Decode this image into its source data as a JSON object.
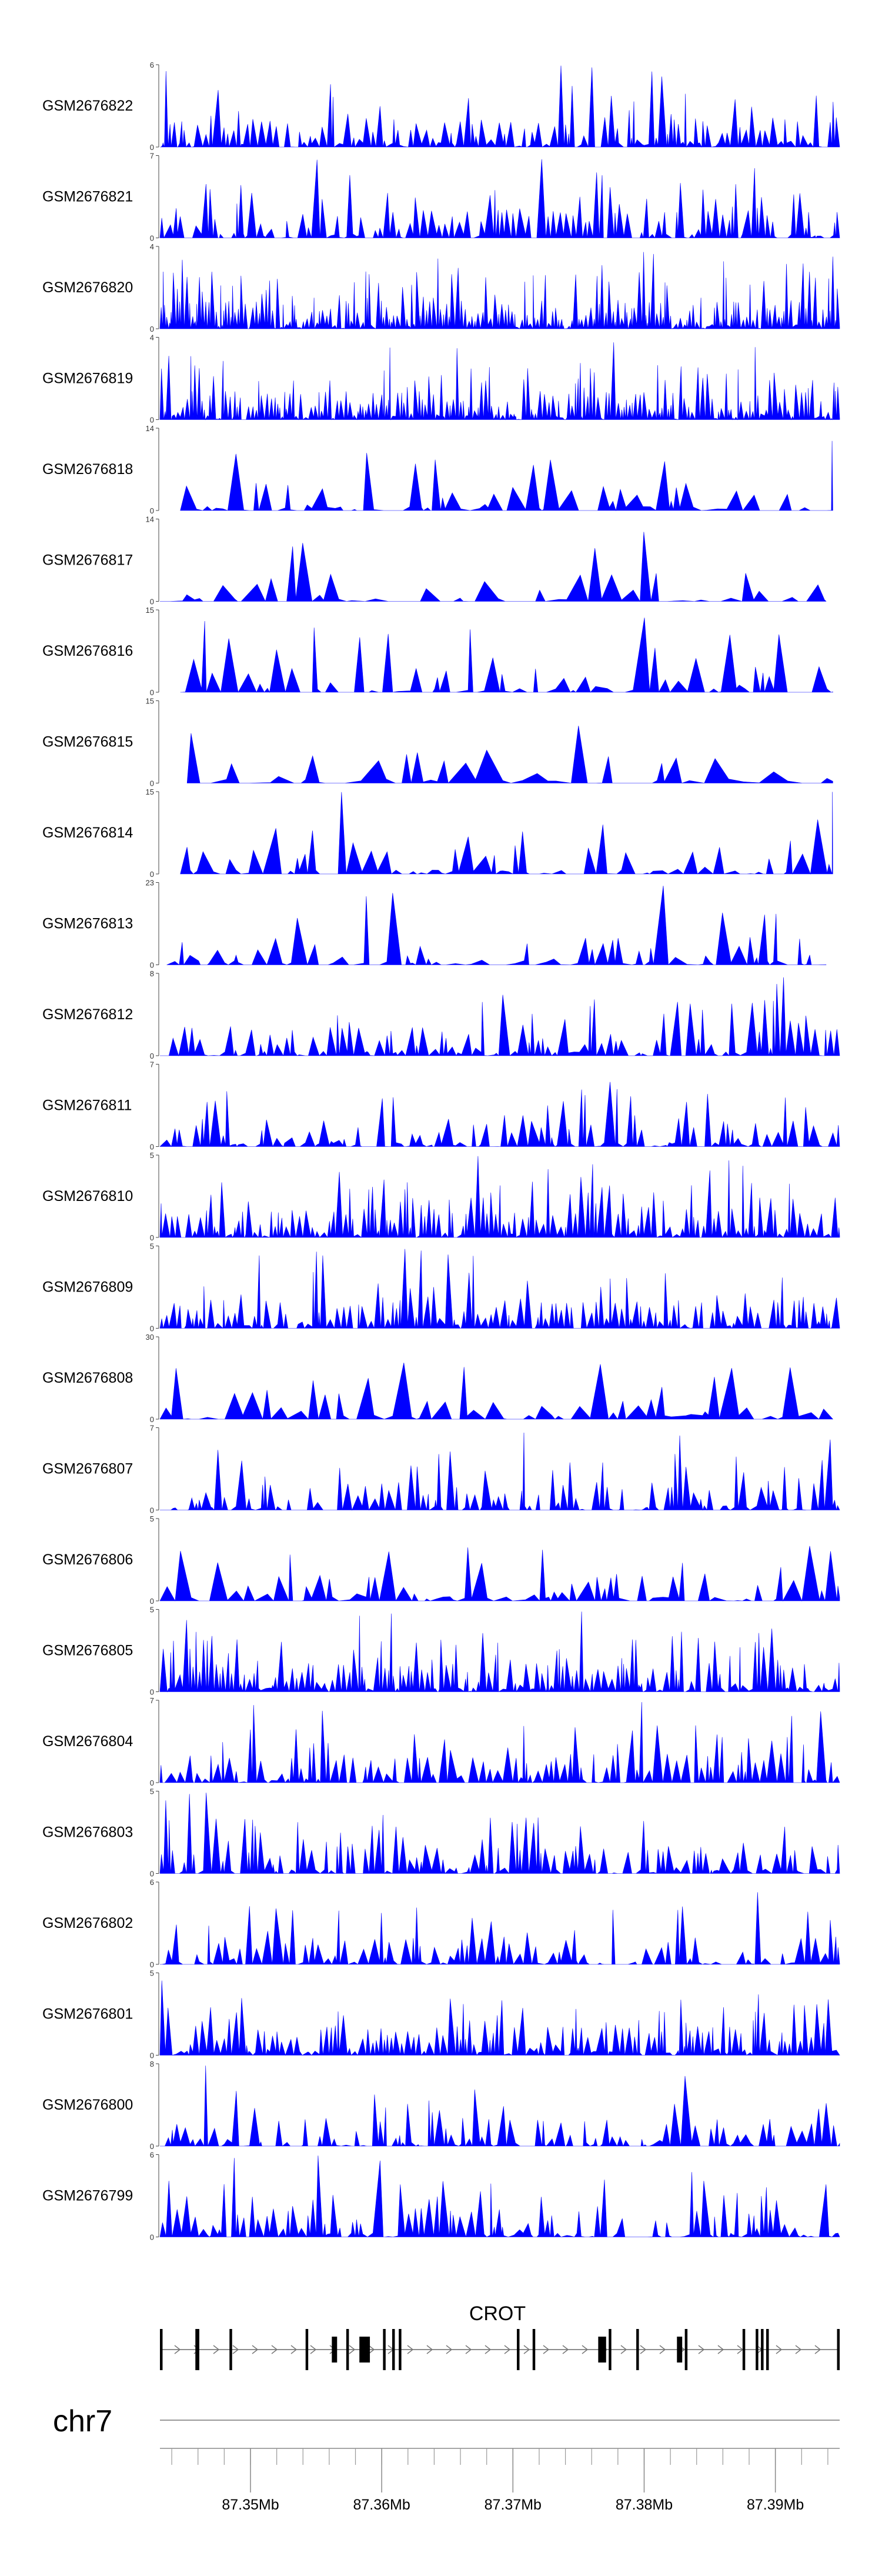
{
  "chart_data": {
    "type": "area",
    "title": "",
    "color": "#0000ff",
    "chromosome": "chr7",
    "xlim_mb": [
      87.3431,
      87.3949
    ],
    "genomic_ticks": [
      {
        "mb": 87.35,
        "label": "87.35Mb"
      },
      {
        "mb": 87.36,
        "label": "87.36Mb"
      },
      {
        "mb": 87.37,
        "label": "87.37Mb"
      },
      {
        "mb": 87.38,
        "label": "87.38Mb"
      },
      {
        "mb": 87.39,
        "label": "87.39Mb"
      }
    ],
    "gene": {
      "name": "CROT",
      "start_mb": 87.3431,
      "end_mb": 87.3949,
      "strand": "+",
      "exons_mb": [
        [
          87.3431,
          87.3433
        ],
        [
          87.3458,
          87.3461
        ],
        [
          87.3484,
          87.3486
        ],
        [
          87.3542,
          87.3544
        ],
        [
          87.3562,
          87.3566
        ],
        [
          87.3573,
          87.3575
        ],
        [
          87.3583,
          87.3591
        ],
        [
          87.3601,
          87.3603
        ],
        [
          87.3608,
          87.361
        ],
        [
          87.3613,
          87.3615
        ],
        [
          87.3703,
          87.3705
        ],
        [
          87.3715,
          87.3717
        ],
        [
          87.3765,
          87.3771
        ],
        [
          87.3773,
          87.3775
        ],
        [
          87.3794,
          87.3796
        ],
        [
          87.3825,
          87.3829
        ],
        [
          87.3831,
          87.3833
        ],
        [
          87.3875,
          87.3877
        ],
        [
          87.3885,
          87.3887
        ],
        [
          87.3889,
          87.3891
        ],
        [
          87.3893,
          87.3895
        ],
        [
          87.3947,
          87.3949
        ]
      ]
    },
    "series": [
      {
        "name": "GSM2676822",
        "ymax": 6,
        "seed": 22,
        "start": 0.0,
        "end": 1.0,
        "density": 150,
        "sparsity": 0.1
      },
      {
        "name": "GSM2676821",
        "ymax": 7,
        "seed": 21,
        "start": 0.0,
        "end": 1.0,
        "density": 140,
        "sparsity": 0.15
      },
      {
        "name": "GSM2676820",
        "ymax": 4,
        "seed": 20,
        "start": 0.0,
        "end": 1.0,
        "density": 260,
        "sparsity": 0.0
      },
      {
        "name": "GSM2676819",
        "ymax": 4,
        "seed": 19,
        "start": 0.0,
        "end": 1.0,
        "density": 240,
        "sparsity": 0.0
      },
      {
        "name": "GSM2676818",
        "ymax": 14,
        "seed": 18,
        "start": 0.03,
        "end": 0.99,
        "density": 65,
        "sparsity": 0.35
      },
      {
        "name": "GSM2676817",
        "ymax": 14,
        "seed": 17,
        "start": 0.0,
        "end": 0.98,
        "density": 55,
        "sparsity": 0.35
      },
      {
        "name": "GSM2676816",
        "ymax": 15,
        "seed": 16,
        "start": 0.03,
        "end": 0.99,
        "density": 70,
        "sparsity": 0.35
      },
      {
        "name": "GSM2676815",
        "ymax": 15,
        "seed": 15,
        "start": 0.04,
        "end": 0.99,
        "density": 40,
        "sparsity": 0.3
      },
      {
        "name": "GSM2676814",
        "ymax": 15,
        "seed": 14,
        "start": 0.03,
        "end": 0.99,
        "density": 70,
        "sparsity": 0.35
      },
      {
        "name": "GSM2676813",
        "ymax": 23,
        "seed": 13,
        "start": 0.01,
        "end": 0.98,
        "density": 70,
        "sparsity": 0.35
      },
      {
        "name": "GSM2676812",
        "ymax": 8,
        "seed": 12,
        "start": 0.0,
        "end": 1.0,
        "density": 120,
        "sparsity": 0.15
      },
      {
        "name": "GSM2676811",
        "ymax": 7,
        "seed": 11,
        "start": 0.0,
        "end": 1.0,
        "density": 110,
        "sparsity": 0.25
      },
      {
        "name": "GSM2676810",
        "ymax": 5,
        "seed": 10,
        "start": 0.0,
        "end": 1.0,
        "density": 170,
        "sparsity": 0.05
      },
      {
        "name": "GSM2676809",
        "ymax": 5,
        "seed": 9,
        "start": 0.0,
        "end": 1.0,
        "density": 160,
        "sparsity": 0.1
      },
      {
        "name": "GSM2676808",
        "ymax": 30,
        "seed": 8,
        "start": 0.0,
        "end": 0.99,
        "density": 60,
        "sparsity": 0.35
      },
      {
        "name": "GSM2676807",
        "ymax": 7,
        "seed": 7,
        "start": 0.0,
        "end": 1.0,
        "density": 130,
        "sparsity": 0.2
      },
      {
        "name": "GSM2676806",
        "ymax": 5,
        "seed": 6,
        "start": 0.0,
        "end": 1.0,
        "density": 70,
        "sparsity": 0.3
      },
      {
        "name": "GSM2676805",
        "ymax": 5,
        "seed": 5,
        "start": 0.0,
        "end": 1.0,
        "density": 170,
        "sparsity": 0.05
      },
      {
        "name": "GSM2676804",
        "ymax": 7,
        "seed": 4,
        "start": 0.0,
        "end": 1.0,
        "density": 130,
        "sparsity": 0.2
      },
      {
        "name": "GSM2676803",
        "ymax": 5,
        "seed": 3,
        "start": 0.0,
        "end": 1.0,
        "density": 140,
        "sparsity": 0.15
      },
      {
        "name": "GSM2676802",
        "ymax": 6,
        "seed": 2,
        "start": 0.0,
        "end": 1.0,
        "density": 120,
        "sparsity": 0.25
      },
      {
        "name": "GSM2676801",
        "ymax": 5,
        "seed": 1,
        "start": 0.0,
        "end": 1.0,
        "density": 160,
        "sparsity": 0.05
      },
      {
        "name": "GSM2676800",
        "ymax": 8,
        "seed": 100,
        "start": 0.0,
        "end": 1.0,
        "density": 120,
        "sparsity": 0.25
      },
      {
        "name": "GSM2676799",
        "ymax": 6,
        "seed": 99,
        "start": 0.0,
        "end": 1.0,
        "density": 130,
        "sparsity": 0.2
      }
    ]
  }
}
